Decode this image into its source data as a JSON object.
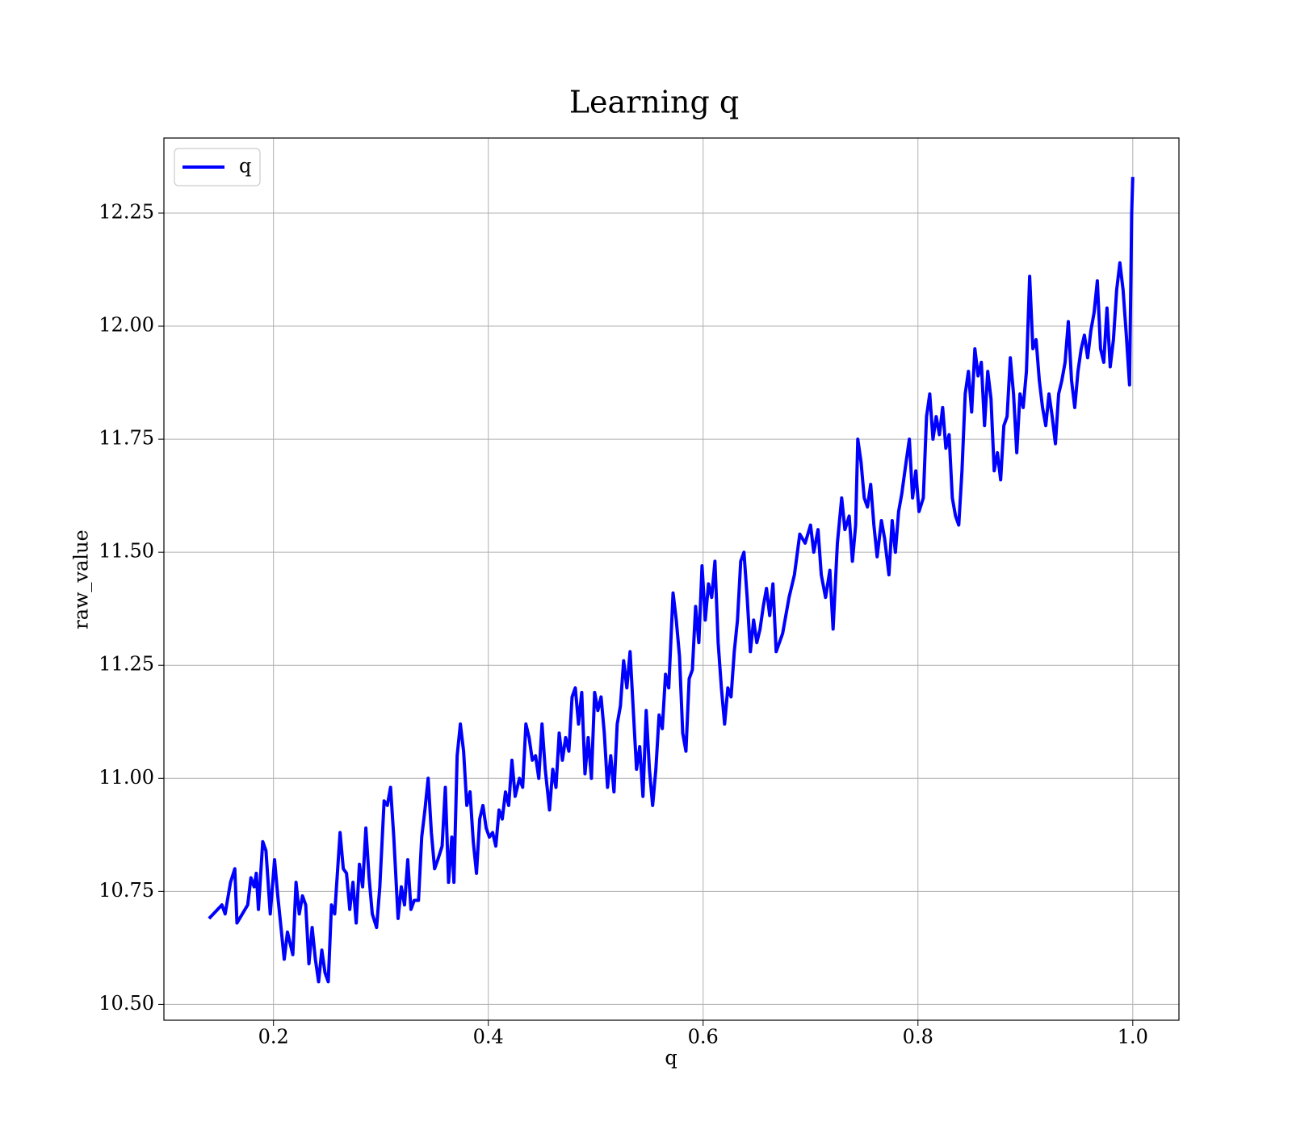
{
  "chart_data": {
    "type": "line",
    "title": "Learning q",
    "xlabel": "q",
    "ylabel": "raw_value",
    "x": [
      0.14,
      0.152,
      0.155,
      0.16,
      0.164,
      0.166,
      0.176,
      0.179,
      0.182,
      0.184,
      0.186,
      0.19,
      0.193,
      0.197,
      0.201,
      0.204,
      0.21,
      0.213,
      0.218,
      0.221,
      0.224,
      0.227,
      0.23,
      0.233,
      0.236,
      0.239,
      0.242,
      0.245,
      0.248,
      0.251,
      0.254,
      0.257,
      0.262,
      0.265,
      0.268,
      0.271,
      0.274,
      0.277,
      0.28,
      0.283,
      0.286,
      0.289,
      0.292,
      0.296,
      0.299,
      0.303,
      0.306,
      0.309,
      0.312,
      0.316,
      0.319,
      0.322,
      0.325,
      0.328,
      0.331,
      0.335,
      0.338,
      0.341,
      0.344,
      0.347,
      0.35,
      0.353,
      0.357,
      0.36,
      0.363,
      0.366,
      0.368,
      0.371,
      0.374,
      0.377,
      0.38,
      0.383,
      0.386,
      0.389,
      0.392,
      0.395,
      0.398,
      0.401,
      0.404,
      0.407,
      0.41,
      0.413,
      0.416,
      0.419,
      0.422,
      0.425,
      0.429,
      0.432,
      0.435,
      0.438,
      0.441,
      0.444,
      0.447,
      0.45,
      0.453,
      0.457,
      0.46,
      0.463,
      0.466,
      0.469,
      0.472,
      0.475,
      0.478,
      0.481,
      0.484,
      0.487,
      0.49,
      0.493,
      0.496,
      0.499,
      0.502,
      0.505,
      0.508,
      0.511,
      0.514,
      0.517,
      0.52,
      0.523,
      0.526,
      0.529,
      0.532,
      0.535,
      0.538,
      0.541,
      0.544,
      0.547,
      0.55,
      0.553,
      0.556,
      0.559,
      0.562,
      0.565,
      0.568,
      0.572,
      0.575,
      0.578,
      0.581,
      0.584,
      0.587,
      0.59,
      0.593,
      0.596,
      0.599,
      0.602,
      0.605,
      0.608,
      0.611,
      0.614,
      0.617,
      0.62,
      0.623,
      0.626,
      0.629,
      0.632,
      0.635,
      0.638,
      0.641,
      0.644,
      0.647,
      0.65,
      0.653,
      0.656,
      0.659,
      0.662,
      0.665,
      0.668,
      0.671,
      0.674,
      0.677,
      0.68,
      0.685,
      0.69,
      0.695,
      0.7,
      0.703,
      0.707,
      0.71,
      0.714,
      0.718,
      0.721,
      0.725,
      0.729,
      0.732,
      0.736,
      0.739,
      0.742,
      0.744,
      0.747,
      0.75,
      0.753,
      0.756,
      0.759,
      0.762,
      0.766,
      0.769,
      0.773,
      0.776,
      0.779,
      0.782,
      0.785,
      0.789,
      0.792,
      0.795,
      0.798,
      0.801,
      0.805,
      0.808,
      0.811,
      0.814,
      0.817,
      0.82,
      0.823,
      0.826,
      0.829,
      0.832,
      0.835,
      0.838,
      0.841,
      0.844,
      0.847,
      0.85,
      0.853,
      0.856,
      0.859,
      0.862,
      0.865,
      0.868,
      0.871,
      0.874,
      0.877,
      0.88,
      0.883,
      0.886,
      0.889,
      0.892,
      0.895,
      0.898,
      0.901,
      0.904,
      0.907,
      0.91,
      0.913,
      0.916,
      0.919,
      0.922,
      0.925,
      0.928,
      0.931,
      0.934,
      0.937,
      0.94,
      0.943,
      0.946,
      0.949,
      0.952,
      0.955,
      0.958,
      0.961,
      0.964,
      0.967,
      0.97,
      0.973,
      0.976,
      0.979,
      0.982,
      0.985,
      0.988,
      0.991,
      0.994,
      0.997,
      0.999,
      1.0
    ],
    "series": [
      {
        "name": "q",
        "color": "#0000ff",
        "values": [
          10.69,
          10.72,
          10.7,
          10.77,
          10.8,
          10.68,
          10.72,
          10.78,
          10.76,
          10.79,
          10.71,
          10.86,
          10.84,
          10.7,
          10.82,
          10.74,
          10.6,
          10.66,
          10.61,
          10.77,
          10.7,
          10.74,
          10.72,
          10.59,
          10.67,
          10.6,
          10.55,
          10.62,
          10.57,
          10.55,
          10.72,
          10.7,
          10.88,
          10.8,
          10.79,
          10.71,
          10.77,
          10.68,
          10.81,
          10.76,
          10.89,
          10.78,
          10.7,
          10.67,
          10.76,
          10.95,
          10.94,
          10.98,
          10.87,
          10.69,
          10.76,
          10.72,
          10.82,
          10.71,
          10.73,
          10.73,
          10.87,
          10.93,
          11.0,
          10.88,
          10.8,
          10.82,
          10.85,
          10.98,
          10.77,
          10.87,
          10.77,
          11.05,
          11.12,
          11.06,
          10.94,
          10.97,
          10.86,
          10.79,
          10.91,
          10.94,
          10.89,
          10.87,
          10.88,
          10.85,
          10.93,
          10.91,
          10.97,
          10.94,
          11.04,
          10.96,
          11.0,
          10.98,
          11.12,
          11.09,
          11.04,
          11.05,
          11.0,
          11.12,
          11.02,
          10.93,
          11.02,
          10.98,
          11.1,
          11.04,
          11.09,
          11.06,
          11.18,
          11.2,
          11.12,
          11.19,
          11.01,
          11.09,
          11.0,
          11.19,
          11.15,
          11.18,
          11.1,
          10.98,
          11.05,
          10.97,
          11.12,
          11.16,
          11.26,
          11.2,
          11.28,
          11.15,
          11.02,
          11.07,
          10.96,
          11.15,
          11.02,
          10.94,
          11.02,
          11.14,
          11.11,
          11.23,
          11.2,
          11.41,
          11.35,
          11.27,
          11.1,
          11.06,
          11.22,
          11.24,
          11.38,
          11.3,
          11.47,
          11.35,
          11.43,
          11.4,
          11.48,
          11.3,
          11.2,
          11.12,
          11.2,
          11.18,
          11.28,
          11.35,
          11.48,
          11.5,
          11.4,
          11.28,
          11.35,
          11.3,
          11.33,
          11.38,
          11.42,
          11.36,
          11.43,
          11.28,
          11.3,
          11.32,
          11.36,
          11.4,
          11.45,
          11.54,
          11.52,
          11.56,
          11.5,
          11.55,
          11.45,
          11.4,
          11.46,
          11.33,
          11.52,
          11.62,
          11.55,
          11.58,
          11.48,
          11.56,
          11.75,
          11.7,
          11.62,
          11.6,
          11.65,
          11.56,
          11.49,
          11.57,
          11.53,
          11.45,
          11.57,
          11.5,
          11.59,
          11.63,
          11.7,
          11.75,
          11.62,
          11.68,
          11.59,
          11.62,
          11.8,
          11.85,
          11.75,
          11.8,
          11.76,
          11.82,
          11.73,
          11.76,
          11.62,
          11.58,
          11.56,
          11.68,
          11.85,
          11.9,
          11.81,
          11.95,
          11.89,
          11.92,
          11.78,
          11.9,
          11.84,
          11.68,
          11.72,
          11.66,
          11.78,
          11.8,
          11.93,
          11.85,
          11.72,
          11.85,
          11.82,
          11.9,
          12.11,
          11.95,
          11.97,
          11.88,
          11.82,
          11.78,
          11.85,
          11.8,
          11.74,
          11.85,
          11.88,
          11.92,
          12.01,
          11.88,
          11.82,
          11.9,
          11.95,
          11.98,
          11.93,
          11.99,
          12.03,
          12.1,
          11.95,
          11.92,
          12.04,
          11.91,
          11.97,
          12.08,
          12.14,
          12.08,
          11.98,
          11.87,
          12.25,
          12.33
        ]
      }
    ],
    "xlim": [
      0.098,
      1.043
    ],
    "ylim": [
      10.465,
      12.416
    ],
    "xticks": [
      0.2,
      0.4,
      0.6,
      0.8,
      {
        "value": 1.0,
        "label": "1.0"
      }
    ],
    "yticks": [
      {
        "value": 10.5,
        "label": "10.50"
      },
      10.75,
      {
        "value": 11.0,
        "label": "11.00"
      },
      11.25,
      {
        "value": 11.5,
        "label": "11.50"
      },
      11.75,
      {
        "value": 12.0,
        "label": "12.00"
      },
      12.25
    ],
    "grid": true,
    "legend": "upper left"
  }
}
